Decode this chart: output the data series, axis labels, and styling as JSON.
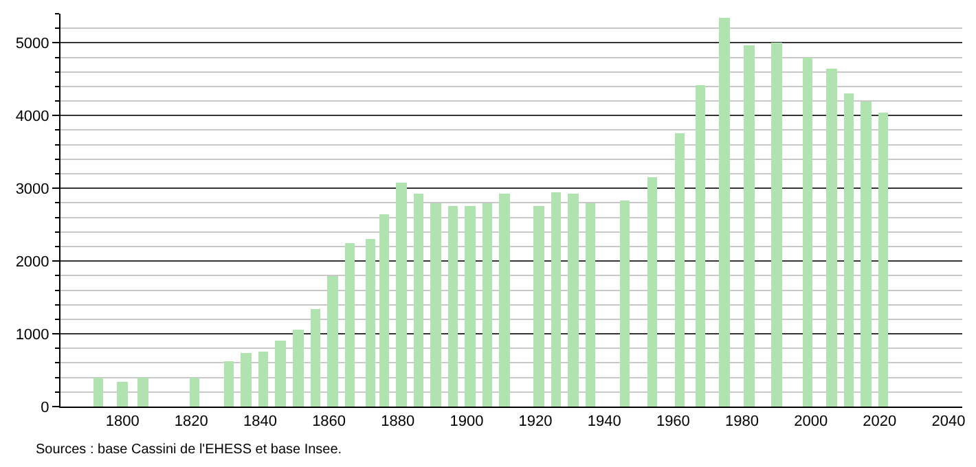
{
  "chart_data": {
    "type": "bar",
    "x": [
      1793,
      1800,
      1806,
      1821,
      1831,
      1836,
      1841,
      1846,
      1851,
      1856,
      1861,
      1866,
      1872,
      1876,
      1881,
      1886,
      1891,
      1896,
      1901,
      1906,
      1911,
      1921,
      1926,
      1931,
      1936,
      1946,
      1954,
      1962,
      1968,
      1975,
      1982,
      1990,
      1999,
      2006,
      2011,
      2016,
      2021
    ],
    "values": [
      390,
      340,
      390,
      390,
      620,
      730,
      760,
      900,
      1050,
      1350,
      1790,
      2250,
      2300,
      2650,
      3070,
      2930,
      2800,
      2750,
      2750,
      2800,
      2920,
      2760,
      2950,
      2920,
      2800,
      2830,
      3160,
      3760,
      4410,
      5350,
      4970,
      5000,
      4800,
      4650,
      4310,
      4190,
      4040
    ],
    "color": "#b0e3b0",
    "xlim": [
      1782,
      2044
    ],
    "xticks": [
      1800,
      1820,
      1840,
      1860,
      1880,
      1900,
      1920,
      1940,
      1960,
      1980,
      2000,
      2020,
      2040
    ],
    "ylim": [
      0,
      5400
    ],
    "yticks": [
      0,
      1000,
      2000,
      3000,
      4000,
      5000
    ],
    "grid": "y",
    "annotations": [
      "Sources : base Cassini de l'EHESS et base Insee."
    ]
  }
}
